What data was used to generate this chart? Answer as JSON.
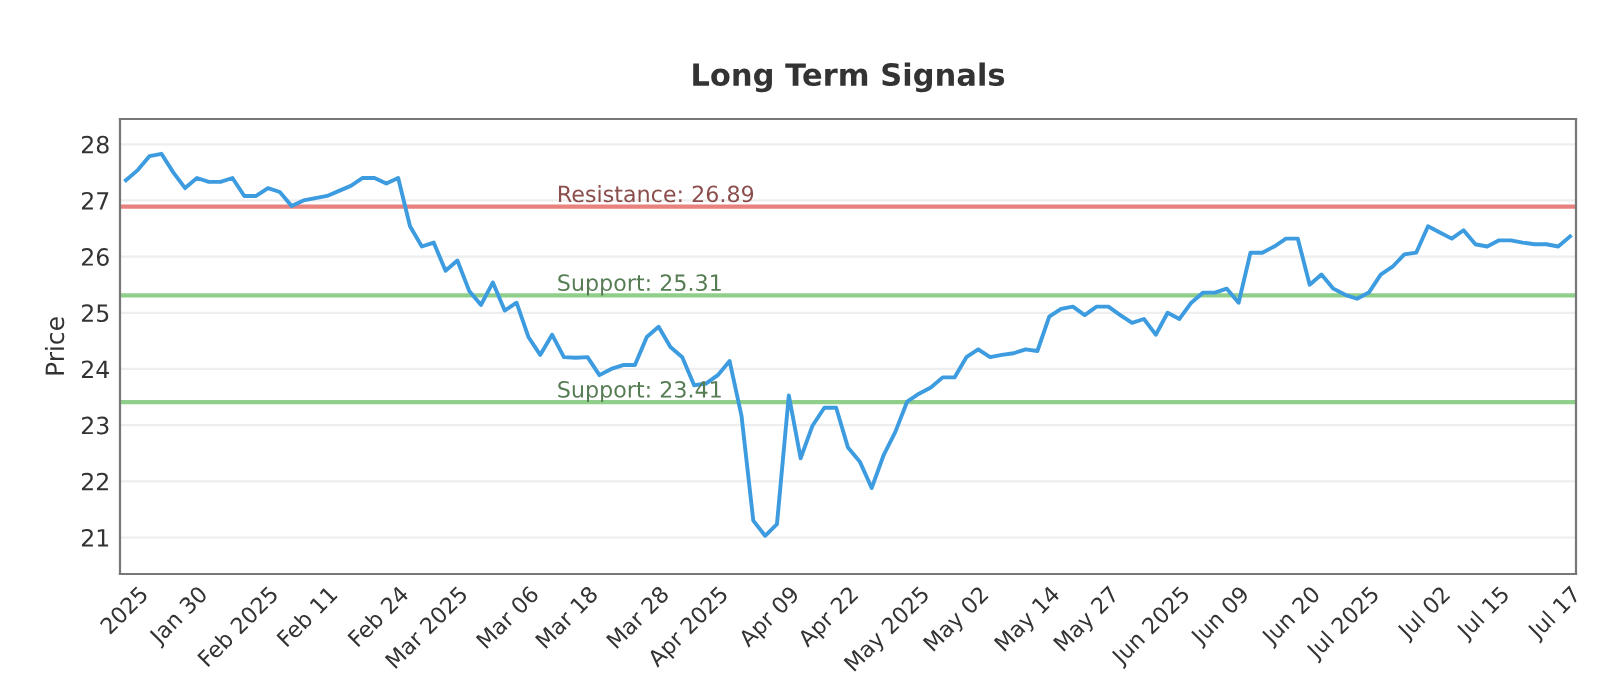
{
  "chart_data": {
    "type": "line",
    "title": "Long Term Signals",
    "ylabel": "Price",
    "categories": [
      null,
      "2025",
      null,
      null,
      null,
      null,
      "Jan 30",
      null,
      null,
      null,
      null,
      null,
      "Feb 2025",
      null,
      null,
      null,
      null,
      "Feb 11",
      null,
      null,
      null,
      null,
      null,
      "Feb 24",
      null,
      null,
      null,
      null,
      "Mar 2025",
      null,
      null,
      null,
      null,
      null,
      "Mar 06",
      null,
      null,
      null,
      null,
      "Mar 18",
      null,
      null,
      null,
      null,
      null,
      "Mar 28",
      null,
      null,
      null,
      null,
      "Apr 2025",
      null,
      null,
      null,
      null,
      null,
      "Apr 09",
      null,
      null,
      null,
      null,
      "Apr 22",
      null,
      null,
      null,
      null,
      null,
      "May 2025",
      null,
      null,
      null,
      null,
      "May 02",
      null,
      null,
      null,
      null,
      null,
      "May 14",
      null,
      null,
      null,
      null,
      "May 27",
      null,
      null,
      null,
      null,
      null,
      "Jun 2025",
      null,
      null,
      null,
      null,
      "Jun 09",
      null,
      null,
      null,
      null,
      null,
      "Jun 20",
      null,
      null,
      null,
      null,
      "Jul 2025",
      null,
      null,
      null,
      null,
      null,
      "Jul 02",
      null,
      null,
      null,
      null,
      "Jul 15",
      null,
      null,
      null,
      null,
      null,
      "Jul 17"
    ],
    "series": [
      {
        "color": "#3d9be0",
        "values": [
          27.36,
          27.54,
          27.79,
          27.83,
          27.5,
          27.22,
          27.4,
          27.33,
          27.33,
          27.4,
          27.08,
          27.08,
          27.22,
          27.15,
          26.9,
          27.0,
          27.04,
          27.08,
          27.17,
          27.26,
          27.4,
          27.4,
          27.3,
          27.4,
          26.54,
          26.18,
          26.25,
          25.75,
          25.93,
          25.39,
          25.14,
          25.54,
          25.04,
          25.18,
          24.57,
          24.25,
          24.61,
          24.21,
          24.2,
          24.21,
          23.89,
          24.0,
          24.07,
          24.07,
          24.57,
          24.75,
          24.39,
          24.21,
          23.71,
          23.74,
          23.89,
          24.14,
          23.17,
          21.3,
          21.03,
          21.24,
          23.53,
          22.41,
          22.99,
          23.31,
          23.31,
          22.6,
          22.35,
          21.88,
          22.46,
          22.88,
          23.42,
          23.56,
          23.67,
          23.85,
          23.85,
          24.21,
          24.35,
          24.21,
          24.25,
          24.28,
          24.35,
          24.32,
          24.93,
          25.07,
          25.11,
          24.96,
          25.11,
          25.11,
          24.96,
          24.82,
          24.89,
          24.61,
          25.0,
          24.89,
          25.18,
          25.36,
          25.36,
          25.43,
          25.18,
          26.07,
          26.07,
          26.18,
          26.32,
          26.32,
          25.5,
          25.68,
          25.43,
          25.32,
          25.25,
          25.36,
          25.68,
          25.82,
          26.04,
          26.07,
          26.54,
          26.43,
          26.32,
          26.47,
          26.22,
          26.18,
          26.29,
          26.29,
          26.25,
          26.22,
          26.22,
          26.18,
          26.36
        ]
      }
    ],
    "ylim": [
      20.35,
      28.45
    ],
    "yticks": [
      21,
      22,
      23,
      24,
      25,
      26,
      27,
      28
    ],
    "grid": "y",
    "marker": "none",
    "line_style": "solid",
    "ref_lines": [
      {
        "axis": "y",
        "value": 26.89,
        "label": "Resistance: 26.89",
        "color": "#e8827f"
      },
      {
        "axis": "y",
        "value": 25.31,
        "label": "Support: 25.31",
        "color": "#8fcf8a"
      },
      {
        "axis": "y",
        "value": 23.41,
        "label": "Support: 23.41",
        "color": "#8fcf8a"
      }
    ]
  }
}
